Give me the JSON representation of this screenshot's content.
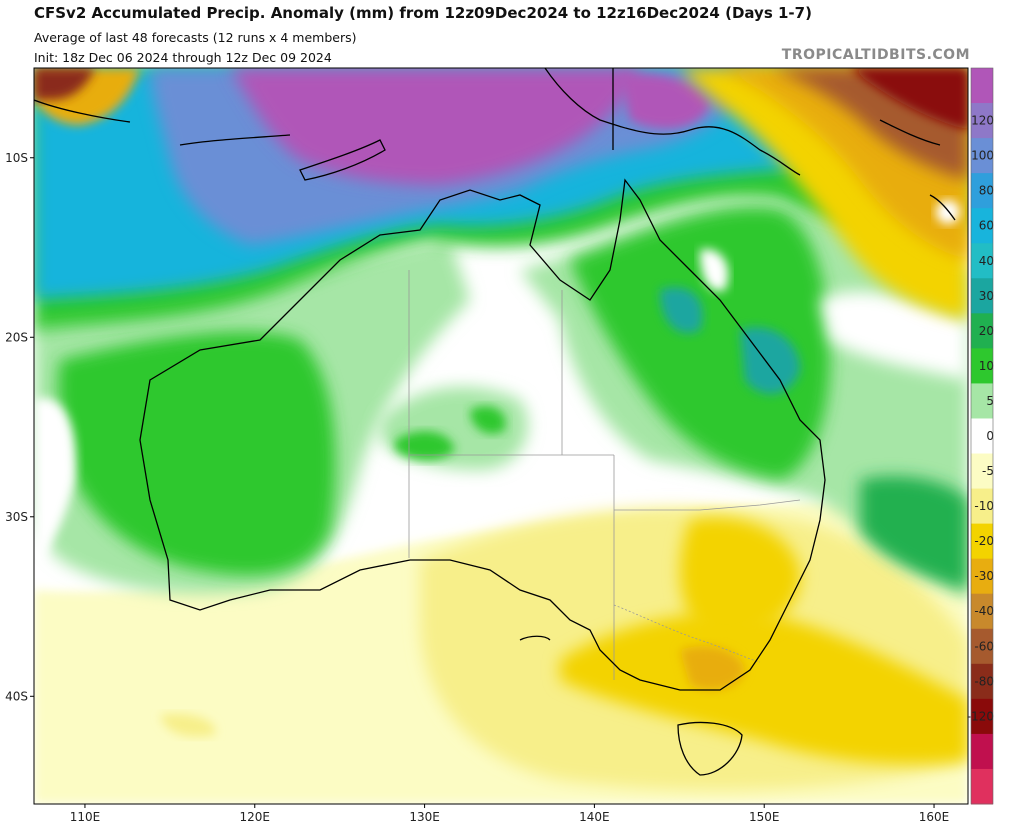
{
  "header": {
    "title": "CFSv2 Accumulated Precip. Anomaly (mm) from 12z09Dec2024 to 12z16Dec2024 (Days 1-7)",
    "subtitle": "Average of last 48 forecasts (12 runs x 4 members)",
    "init": "Init: 18z Dec 06 2024 through 12z Dec 09 2024",
    "brand": "TROPICALTIDBITS.COM"
  },
  "map": {
    "lon_range": [
      107,
      162
    ],
    "lat_range": [
      -46,
      -5
    ],
    "lon_ticks": [
      {
        "value": 110,
        "label": "110E"
      },
      {
        "value": 120,
        "label": "120E"
      },
      {
        "value": 130,
        "label": "130E"
      },
      {
        "value": 140,
        "label": "140E"
      },
      {
        "value": 150,
        "label": "150E"
      },
      {
        "value": 160,
        "label": "160E"
      }
    ],
    "lat_ticks": [
      {
        "value": -10,
        "label": "10S"
      },
      {
        "value": -20,
        "label": "20S"
      },
      {
        "value": -30,
        "label": "30S"
      },
      {
        "value": -40,
        "label": "40S"
      }
    ]
  },
  "colorbar": {
    "unit": "mm",
    "levels": [
      {
        "label": "",
        "color": "#b056b8"
      },
      {
        "label": "120",
        "color": "#8e78c8"
      },
      {
        "label": "100",
        "color": "#6a8fd6"
      },
      {
        "label": "80",
        "color": "#2f9fdc"
      },
      {
        "label": "60",
        "color": "#18b4dc"
      },
      {
        "label": "40",
        "color": "#22bdc5"
      },
      {
        "label": "30",
        "color": "#1ba6a0"
      },
      {
        "label": "20",
        "color": "#20b050"
      },
      {
        "label": "10",
        "color": "#2ec82e"
      },
      {
        "label": "5",
        "color": "#a6e6a6"
      },
      {
        "label": "0",
        "color": "#ffffff"
      },
      {
        "label": "-5",
        "color": "#fcfcc4"
      },
      {
        "label": "-10",
        "color": "#f7ef8a"
      },
      {
        "label": "-20",
        "color": "#f3d300"
      },
      {
        "label": "-30",
        "color": "#e8ad10"
      },
      {
        "label": "-40",
        "color": "#c8892c"
      },
      {
        "label": "-60",
        "color": "#a65a2e"
      },
      {
        "label": "-80",
        "color": "#8a2c1a"
      },
      {
        "label": "-120",
        "color": "#8a0a0a"
      },
      {
        "label": "",
        "color": "#c0104e"
      },
      {
        "label": "",
        "color": "#e0305e"
      }
    ]
  },
  "colors": {
    "wet_extreme": "#b056b8",
    "wet": "#18b4dc",
    "moist": "#2ec82e",
    "neutral": "#ffffff",
    "dry": "#f3d300",
    "very_dry": "#8a0a0a"
  }
}
